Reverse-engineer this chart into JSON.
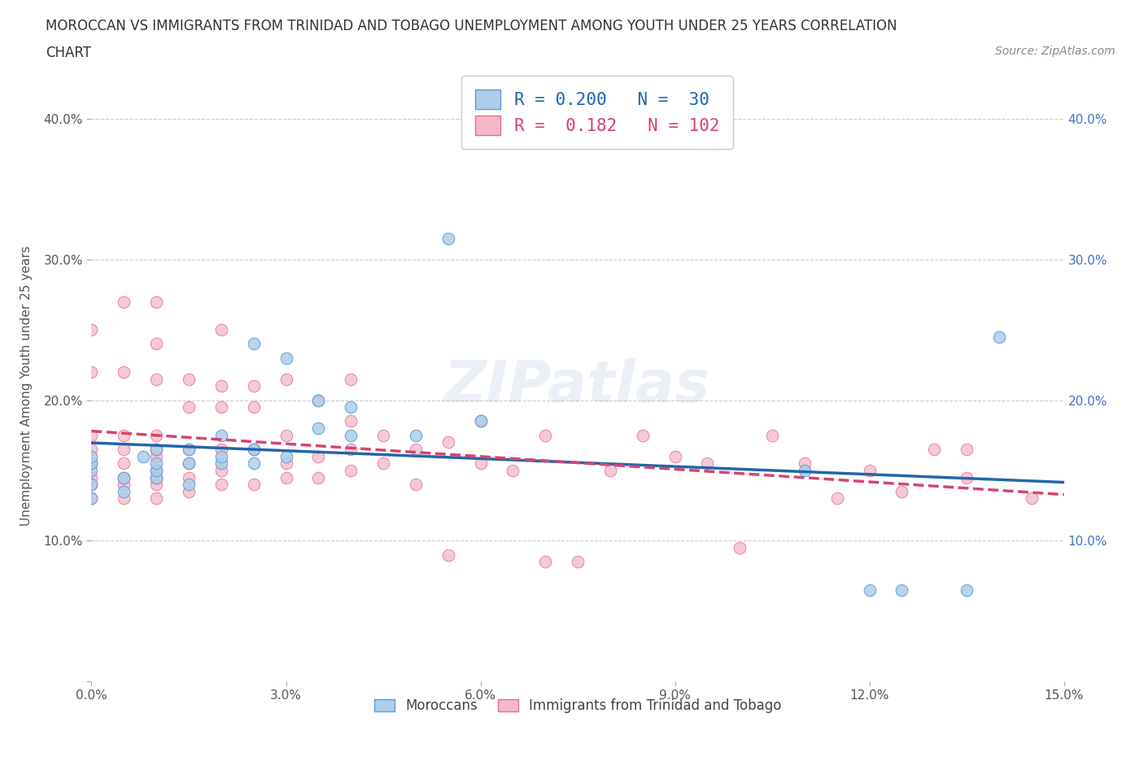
{
  "title_line1": "MOROCCAN VS IMMIGRANTS FROM TRINIDAD AND TOBAGO UNEMPLOYMENT AMONG YOUTH UNDER 25 YEARS CORRELATION",
  "title_line2": "CHART",
  "source_text": "Source: ZipAtlas.com",
  "ylabel": "Unemployment Among Youth under 25 years",
  "xlim": [
    0.0,
    0.15
  ],
  "ylim": [
    0.0,
    0.42
  ],
  "xtick_vals": [
    0.0,
    0.03,
    0.06,
    0.09,
    0.12,
    0.15
  ],
  "xtick_labels": [
    "0.0%",
    "3.0%",
    "6.0%",
    "9.0%",
    "12.0%",
    "15.0%"
  ],
  "ytick_vals": [
    0.0,
    0.1,
    0.2,
    0.3,
    0.4
  ],
  "ytick_labels": [
    "",
    "10.0%",
    "20.0%",
    "30.0%",
    "40.0%"
  ],
  "blue_fill": "#aecde8",
  "blue_edge": "#5b9bd5",
  "pink_fill": "#f4b8c8",
  "pink_edge": "#e07090",
  "blue_line_color": "#2166ac",
  "pink_line_color": "#d6446e",
  "legend_label_blue": "Moroccans",
  "legend_label_pink": "Immigrants from Trinidad and Tobago",
  "watermark": "ZIPatlas",
  "grid_color": "#cccccc",
  "bg_color": "#ffffff",
  "right_ytick_color": "#4472c4",
  "blue_scatter_x": [
    0.0,
    0.0,
    0.0,
    0.0,
    0.0,
    0.005,
    0.005,
    0.008,
    0.01,
    0.01,
    0.01,
    0.01,
    0.015,
    0.015,
    0.015,
    0.02,
    0.02,
    0.02,
    0.025,
    0.025,
    0.025,
    0.03,
    0.03,
    0.035,
    0.035,
    0.04,
    0.04,
    0.05,
    0.055,
    0.06,
    0.11,
    0.12,
    0.125,
    0.135,
    0.14
  ],
  "blue_scatter_y": [
    0.13,
    0.14,
    0.15,
    0.155,
    0.16,
    0.135,
    0.145,
    0.16,
    0.145,
    0.15,
    0.155,
    0.165,
    0.14,
    0.155,
    0.165,
    0.155,
    0.16,
    0.175,
    0.155,
    0.165,
    0.24,
    0.16,
    0.23,
    0.18,
    0.2,
    0.175,
    0.195,
    0.175,
    0.315,
    0.185,
    0.15,
    0.065,
    0.065,
    0.065,
    0.245
  ],
  "pink_scatter_x": [
    0.0,
    0.0,
    0.0,
    0.0,
    0.0,
    0.0,
    0.0,
    0.0,
    0.005,
    0.005,
    0.005,
    0.005,
    0.005,
    0.005,
    0.005,
    0.005,
    0.01,
    0.01,
    0.01,
    0.01,
    0.01,
    0.01,
    0.01,
    0.01,
    0.01,
    0.01,
    0.015,
    0.015,
    0.015,
    0.015,
    0.015,
    0.015,
    0.02,
    0.02,
    0.02,
    0.02,
    0.02,
    0.02,
    0.025,
    0.025,
    0.025,
    0.025,
    0.03,
    0.03,
    0.03,
    0.03,
    0.035,
    0.035,
    0.035,
    0.04,
    0.04,
    0.04,
    0.04,
    0.045,
    0.045,
    0.05,
    0.05,
    0.055,
    0.055,
    0.06,
    0.06,
    0.065,
    0.07,
    0.07,
    0.075,
    0.08,
    0.085,
    0.09,
    0.095,
    0.1,
    0.105,
    0.11,
    0.115,
    0.12,
    0.125,
    0.13,
    0.135,
    0.135,
    0.145
  ],
  "pink_scatter_y": [
    0.13,
    0.14,
    0.145,
    0.155,
    0.165,
    0.175,
    0.22,
    0.25,
    0.13,
    0.14,
    0.145,
    0.155,
    0.165,
    0.175,
    0.22,
    0.27,
    0.13,
    0.14,
    0.145,
    0.15,
    0.16,
    0.165,
    0.175,
    0.215,
    0.24,
    0.27,
    0.135,
    0.145,
    0.155,
    0.165,
    0.195,
    0.215,
    0.14,
    0.15,
    0.165,
    0.195,
    0.21,
    0.25,
    0.14,
    0.165,
    0.195,
    0.21,
    0.145,
    0.155,
    0.175,
    0.215,
    0.145,
    0.16,
    0.2,
    0.15,
    0.165,
    0.185,
    0.215,
    0.155,
    0.175,
    0.14,
    0.165,
    0.09,
    0.17,
    0.155,
    0.185,
    0.15,
    0.085,
    0.175,
    0.085,
    0.15,
    0.175,
    0.16,
    0.155,
    0.095,
    0.175,
    0.155,
    0.13,
    0.15,
    0.135,
    0.165,
    0.145,
    0.165,
    0.13
  ]
}
